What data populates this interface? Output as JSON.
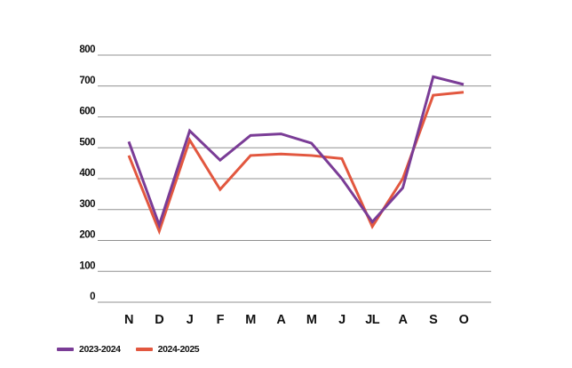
{
  "chart_data": {
    "type": "line",
    "title": "",
    "xlabel": "",
    "ylabel": "",
    "categories": [
      "N",
      "D",
      "J",
      "F",
      "M",
      "A",
      "M",
      "J",
      "JL",
      "A",
      "S",
      "O"
    ],
    "series": [
      {
        "name": "2023-2024",
        "color": "#7A3C96",
        "values": [
          520,
          250,
          555,
          460,
          540,
          545,
          515,
          400,
          260,
          370,
          730,
          705
        ]
      },
      {
        "name": "2024-2025",
        "color": "#E2573F",
        "values": [
          475,
          230,
          525,
          365,
          475,
          480,
          475,
          465,
          245,
          400,
          670,
          680
        ]
      }
    ],
    "ylim": [
      0,
      800
    ],
    "yticks": [
      0,
      100,
      200,
      300,
      400,
      500,
      600,
      700,
      800
    ],
    "grid": true,
    "gridline_color": "#909090",
    "background_color": "#ffffff",
    "text_color": "#111111",
    "legend_position": "bottom-left"
  }
}
